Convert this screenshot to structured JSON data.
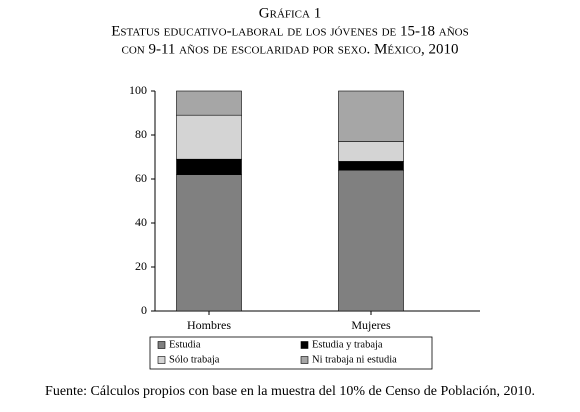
{
  "chart_data": {
    "type": "stacked_bar",
    "title": "Gráfica 1",
    "subtitle": [
      "Estatus educativo-laboral de los jóvenes de 15-18 años",
      "con 9-11 años de escolaridad por sexo. México, 2010"
    ],
    "categories": [
      "Hombres",
      "Mujeres"
    ],
    "series": [
      {
        "name": "Estudia",
        "color": "#808080",
        "values": [
          62,
          64
        ]
      },
      {
        "name": "Estudia y trabaja",
        "color": "#000000",
        "values": [
          7,
          4
        ]
      },
      {
        "name": "Sólo trabaja",
        "color": "#d4d4d4",
        "values": [
          20,
          9
        ]
      },
      {
        "name": "Ni trabaja ni estudia",
        "color": "#a6a6a6",
        "values": [
          11,
          23
        ]
      }
    ],
    "ylim": [
      0,
      100
    ],
    "yticks": [
      0,
      20,
      40,
      60,
      80,
      100
    ],
    "grid": false,
    "source": "Fuente: Cálculos propios con base en la muestra del 10% de Censo de Población, 2010."
  }
}
